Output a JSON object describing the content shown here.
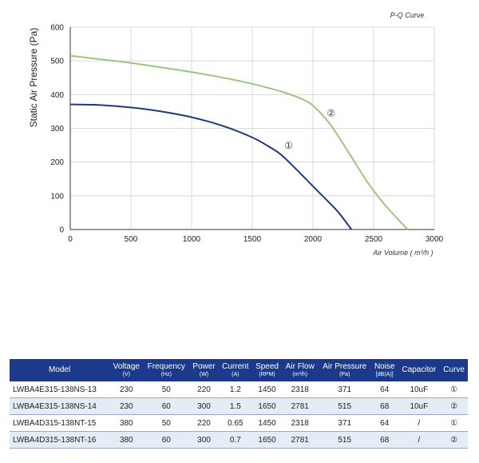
{
  "chart_data": {
    "type": "line",
    "title": "P-Q Curve",
    "xlabel": "Air Volume ( m³/h )",
    "ylabel": "Static Air Pressure  (Pa)",
    "xlim": [
      0,
      3000
    ],
    "ylim": [
      0,
      600
    ],
    "xticks": [
      "0",
      "500",
      "1000",
      "1500",
      "2000",
      "2500",
      "3000"
    ],
    "yticks": [
      "0",
      "100",
      "200",
      "300",
      "400",
      "500",
      "600"
    ],
    "grid": true,
    "series": [
      {
        "name": "①",
        "color": "#1f3a7a",
        "x": [
          0,
          250,
          500,
          750,
          1000,
          1250,
          1500,
          1650,
          1750,
          1900,
          2050,
          2200,
          2318
        ],
        "y": [
          371,
          369,
          362,
          350,
          333,
          308,
          273,
          243,
          218,
          165,
          110,
          55,
          0
        ]
      },
      {
        "name": "②",
        "color": "#9cc67e",
        "x": [
          0,
          250,
          500,
          750,
          1000,
          1250,
          1500,
          1750,
          1950,
          2050,
          2150,
          2300,
          2450,
          2600,
          2781
        ],
        "y": [
          515,
          505,
          494,
          481,
          467,
          451,
          432,
          408,
          380,
          350,
          308,
          225,
          140,
          70,
          0
        ]
      }
    ]
  },
  "table": {
    "headers": [
      {
        "label": "Model",
        "unit": ""
      },
      {
        "label": "Voltage",
        "unit": "(V)"
      },
      {
        "label": "Frequency",
        "unit": "(Hz)"
      },
      {
        "label": "Power",
        "unit": "(W)"
      },
      {
        "label": "Current",
        "unit": "(A)"
      },
      {
        "label": "Speed",
        "unit": "(RPM)"
      },
      {
        "label": "Air Flow",
        "unit": "(m³/h)"
      },
      {
        "label": "Air Pressure",
        "unit": "(Pa)"
      },
      {
        "label": "Noise",
        "unit": "[dB(A)]"
      },
      {
        "label": "Capacitor",
        "unit": ""
      },
      {
        "label": "Curve",
        "unit": ""
      }
    ],
    "rows": [
      [
        "LWBA4E315-138NS-13",
        "230",
        "50",
        "220",
        "1.2",
        "1450",
        "2318",
        "371",
        "64",
        "10uF",
        "①"
      ],
      [
        "LWBA4E315-138NS-14",
        "230",
        "60",
        "300",
        "1.5",
        "1650",
        "2781",
        "515",
        "68",
        "10uF",
        "②"
      ],
      [
        "LWBA4D315-138NT-15",
        "380",
        "50",
        "220",
        "0.65",
        "1450",
        "2318",
        "371",
        "64",
        "/",
        "①"
      ],
      [
        "LWBA4D315-138NT-16",
        "380",
        "60",
        "300",
        "0.7",
        "1650",
        "2781",
        "515",
        "68",
        "/",
        "②"
      ]
    ]
  }
}
